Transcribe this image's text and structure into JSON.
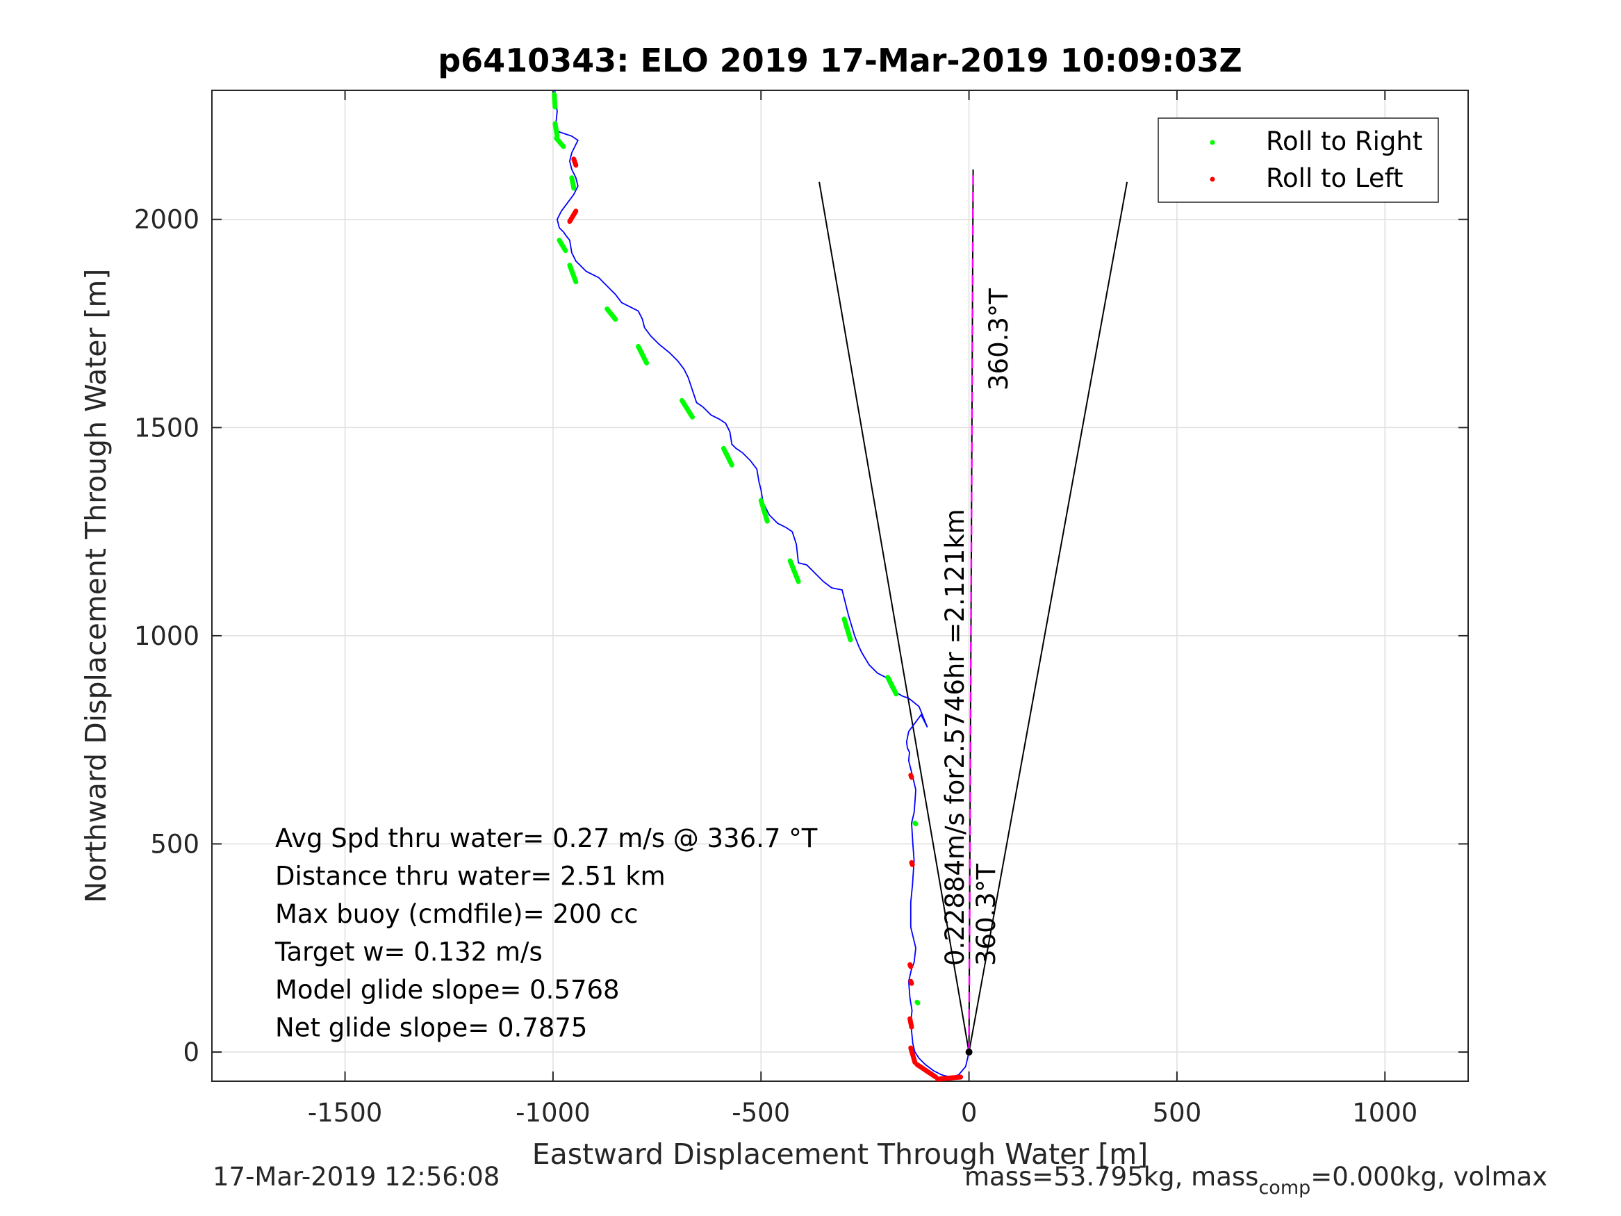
{
  "chart_data": {
    "type": "scatter",
    "title": "p6410343: ELO 2019 17-Mar-2019 10:09:03Z",
    "xlabel": "Eastward Displacement Through Water [m]",
    "ylabel": "Northward Displacement Through Water [m]",
    "xlim": [
      -1820,
      1200
    ],
    "ylim": [
      -70,
      2310
    ],
    "xticks": [
      -1500,
      -1000,
      -500,
      0,
      500,
      1000
    ],
    "yticks": [
      0,
      500,
      1000,
      1500,
      2000
    ],
    "grid": true,
    "legend_position": "top-right",
    "legend": [
      "Roll to Right",
      "Roll to Left"
    ],
    "colors": {
      "track": "#0000ff",
      "roll_right": "#00ff00",
      "roll_left": "#ff0000",
      "cone": "#000000",
      "heading_line": "#ff00ff"
    },
    "track": {
      "x": [
        0,
        -8,
        -25,
        -45,
        -65,
        -85,
        -105,
        -120,
        -130,
        -135,
        -138,
        -140,
        -137,
        -142,
        -145,
        -138,
        -132,
        -128,
        -140,
        -140,
        -136,
        -132,
        -135,
        -138,
        -132,
        -130,
        -128,
        -135,
        -140,
        -145,
        -143,
        -148,
        -150,
        -145,
        -130,
        -115,
        -100,
        -120,
        -145,
        -160,
        -185,
        -200,
        -220,
        -240,
        -258,
        -265,
        -275,
        -290,
        -300,
        -305,
        -330,
        -350,
        -370,
        -390,
        -410,
        -415,
        -425,
        -440,
        -460,
        -480,
        -495,
        -500,
        -505,
        -510,
        -525,
        -545,
        -560,
        -570,
        -575,
        -585,
        -600,
        -620,
        -640,
        -655,
        -665,
        -675,
        -685,
        -700,
        -720,
        -745,
        -765,
        -780,
        -785,
        -795,
        -815,
        -835,
        -850,
        -860,
        -870,
        -890,
        -920,
        -945,
        -955,
        -960,
        -968,
        -975,
        -985,
        -990,
        -980,
        -965,
        -950,
        -940,
        -945,
        -955,
        -960,
        -955,
        -945,
        -940,
        -955,
        -970,
        -985,
        -995,
        -992,
        -990,
        -993,
        -997,
        -995
      ],
      "y": [
        0,
        -35,
        -55,
        -60,
        -55,
        -45,
        -30,
        -15,
        0,
        20,
        50,
        70,
        100,
        130,
        170,
        200,
        215,
        250,
        300,
        360,
        400,
        460,
        500,
        550,
        575,
        600,
        630,
        660,
        680,
        700,
        720,
        730,
        745,
        770,
        790,
        810,
        780,
        830,
        850,
        855,
        870,
        900,
        910,
        930,
        960,
        975,
        1000,
        1050,
        1090,
        1110,
        1115,
        1130,
        1150,
        1170,
        1175,
        1220,
        1250,
        1260,
        1270,
        1290,
        1320,
        1350,
        1370,
        1400,
        1420,
        1440,
        1450,
        1460,
        1490,
        1510,
        1520,
        1530,
        1550,
        1560,
        1590,
        1620,
        1640,
        1660,
        1680,
        1700,
        1720,
        1740,
        1760,
        1780,
        1790,
        1800,
        1820,
        1830,
        1840,
        1860,
        1875,
        1900,
        1920,
        1950,
        1960,
        1970,
        1980,
        2000,
        2020,
        2040,
        2060,
        2080,
        2100,
        2120,
        2140,
        2160,
        2180,
        2190,
        2200,
        2205,
        2210,
        2220,
        2240,
        2260,
        2280,
        2295,
        2310
      ]
    },
    "roll_right_segments": [
      [
        [
          -997,
          2300
        ],
        [
          -995,
          2270
        ]
      ],
      [
        [
          -995,
          2230
        ],
        [
          -990,
          2200
        ]
      ],
      [
        [
          -992,
          2195
        ],
        [
          -975,
          2175
        ]
      ],
      [
        [
          -955,
          2100
        ],
        [
          -950,
          2075
        ]
      ],
      [
        [
          -985,
          1950
        ],
        [
          -970,
          1925
        ]
      ],
      [
        [
          -960,
          1890
        ],
        [
          -945,
          1850
        ]
      ],
      [
        [
          -870,
          1785
        ],
        [
          -850,
          1760
        ]
      ],
      [
        [
          -795,
          1695
        ],
        [
          -775,
          1655
        ]
      ],
      [
        [
          -690,
          1565
        ],
        [
          -665,
          1525
        ]
      ],
      [
        [
          -590,
          1450
        ],
        [
          -570,
          1410
        ]
      ],
      [
        [
          -500,
          1325
        ],
        [
          -485,
          1275
        ]
      ],
      [
        [
          -430,
          1180
        ],
        [
          -410,
          1130
        ]
      ],
      [
        [
          -300,
          1040
        ],
        [
          -285,
          990
        ]
      ],
      [
        [
          -195,
          900
        ],
        [
          -175,
          860
        ]
      ],
      [
        [
          -130,
          550
        ],
        [
          -128,
          548
        ]
      ],
      [
        [
          -125,
          120
        ],
        [
          -123,
          118
        ]
      ]
    ],
    "roll_left_segments": [
      [
        [
          -950,
          2145
        ],
        [
          -945,
          2130
        ]
      ],
      [
        [
          -960,
          1995
        ],
        [
          -945,
          2020
        ]
      ],
      [
        [
          -140,
          665
        ],
        [
          -138,
          660
        ]
      ],
      [
        [
          -138,
          455
        ],
        [
          -136,
          450
        ]
      ],
      [
        [
          -142,
          210
        ],
        [
          -140,
          205
        ]
      ],
      [
        [
          -140,
          170
        ],
        [
          -138,
          165
        ]
      ],
      [
        [
          -142,
          80
        ],
        [
          -138,
          60
        ]
      ],
      [
        [
          -140,
          10
        ],
        [
          -130,
          -25
        ]
      ],
      [
        [
          -125,
          -30
        ],
        [
          -80,
          -60
        ]
      ],
      [
        [
          -75,
          -65
        ],
        [
          -20,
          -60
        ]
      ]
    ],
    "cone": {
      "left_end": [
        -360,
        2090
      ],
      "right_end": [
        380,
        2090
      ]
    },
    "heading_line": {
      "end": [
        10,
        2120
      ]
    },
    "annotations": {
      "heading_top": "360.3°T",
      "heading_bottom": "360.3°T",
      "current": "0.22884m/s for2.5746hr =2.121km"
    },
    "stats": [
      "Avg Spd thru water=  0.27 m/s @ 336.7 °T",
      "Distance thru water=  2.51 km",
      "Max buoy (cmdfile)= 200 cc",
      "Target w= 0.132 m/s",
      "Model glide slope= 0.5768",
      "Net glide slope= 0.7875"
    ]
  },
  "footer": {
    "timestamp": "17-Mar-2019 12:56:08",
    "mass_prefix": "mass=53.795kg, mass",
    "mass_sub": "comp",
    "mass_suffix": "=0.000kg, volmax"
  }
}
